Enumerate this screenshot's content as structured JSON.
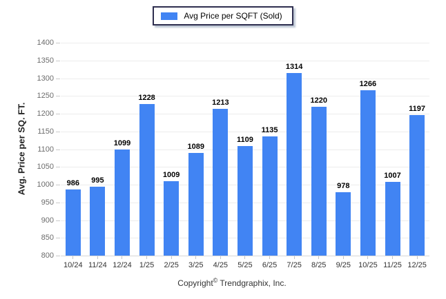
{
  "legend": {
    "label": "Avg Price per SQFT (Sold)"
  },
  "chart_data": {
    "type": "bar",
    "title": "",
    "categories": [
      "10/24",
      "11/24",
      "12/24",
      "1/25",
      "2/25",
      "3/25",
      "4/25",
      "5/25",
      "6/25",
      "7/25",
      "8/25",
      "9/25",
      "10/25",
      "11/25",
      "12/25"
    ],
    "values": [
      986,
      995,
      1099,
      1228,
      1009,
      1089,
      1213,
      1109,
      1135,
      1314,
      1220,
      978,
      1266,
      1007,
      1197
    ],
    "xlabel": "",
    "ylabel": "Avg. Price per SQ. FT.",
    "ylim": [
      800,
      1400
    ],
    "ytick_step": 50,
    "grid": true,
    "legend_position": "top-center",
    "bar_color": "#4184F3"
  },
  "footer": {
    "copyright_prefix": "Copyright",
    "copyright_symbol": "©",
    "copyright_suffix": "Trendgraphix, Inc."
  },
  "colors": {
    "bar": "#4184F3",
    "grid": "#ececec",
    "axis": "#d6d6d6",
    "legend_border": "#2e2e4f"
  }
}
